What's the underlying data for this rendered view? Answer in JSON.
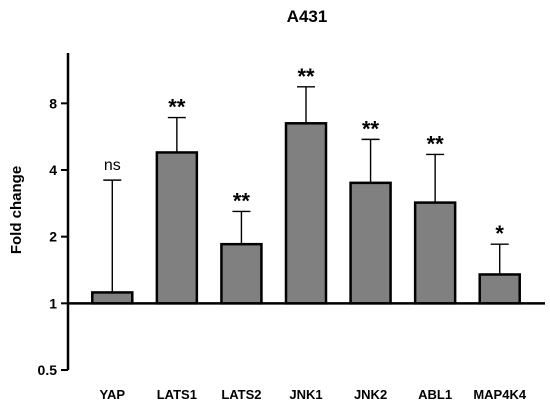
{
  "chart_data": {
    "type": "bar",
    "title": "A431",
    "xlabel": "",
    "ylabel": "Fold change",
    "yscale": "log2",
    "ylim": [
      0.5,
      13.5
    ],
    "yticks": [
      0.5,
      1,
      2,
      4,
      8
    ],
    "ytick_labels": [
      "0.5",
      "1",
      "2",
      "4",
      "8"
    ],
    "baseline": 1,
    "grid": false,
    "bar_color": "#808080",
    "categories": [
      "YAP",
      "LATS1",
      "LATS2",
      "JNK1",
      "JNK2",
      "ABL1",
      "MAP4K4"
    ],
    "values": [
      1.12,
      4.8,
      1.85,
      6.5,
      3.5,
      2.85,
      1.35
    ],
    "error_upper": [
      3.6,
      6.9,
      2.6,
      9.5,
      5.5,
      4.7,
      1.85
    ],
    "significance": [
      "ns",
      "**",
      "**",
      "**",
      "**",
      "**",
      "*"
    ]
  }
}
